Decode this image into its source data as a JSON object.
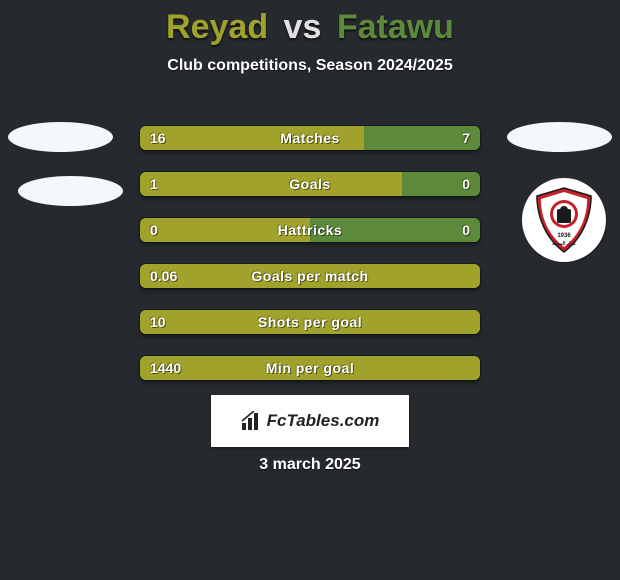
{
  "colors": {
    "background": "#262a2e",
    "left_player": "#a0a22b",
    "vs": "#e0e0e0",
    "right_player": "#5c8a3a",
    "bar_left": "#a0a22b",
    "bar_right": "#5c8a3a",
    "text": "#ffffff",
    "box_bg": "#ffffff",
    "box_text": "#222222"
  },
  "header": {
    "left": "Reyad",
    "vs": "vs",
    "right": "Fatawu",
    "subtitle": "Club competitions, Season 2024/2025"
  },
  "rows": [
    {
      "label": "Matches",
      "left_value": "16",
      "right_value": "7",
      "left_pct": 66,
      "right_pct": 34
    },
    {
      "label": "Goals",
      "left_value": "1",
      "right_value": "0",
      "left_pct": 77,
      "right_pct": 23
    },
    {
      "label": "Hattricks",
      "left_value": "0",
      "right_value": "0",
      "left_pct": 50,
      "right_pct": 50
    },
    {
      "label": "Goals per match",
      "left_value": "0.06",
      "right_value": "",
      "left_pct": 100,
      "right_pct": 0
    },
    {
      "label": "Shots per goal",
      "left_value": "10",
      "right_value": "",
      "left_pct": 100,
      "right_pct": 0
    },
    {
      "label": "Min per goal",
      "left_value": "1440",
      "right_value": "",
      "left_pct": 100,
      "right_pct": 0
    }
  ],
  "badge": {
    "year": "1936",
    "arabic": "غزل المحلة",
    "shield_fill": "#c8202a",
    "shield_white": "#ffffff",
    "shield_black": "#1a1a1a"
  },
  "footer": {
    "brand": "FcTables.com",
    "date": "3 march 2025"
  }
}
